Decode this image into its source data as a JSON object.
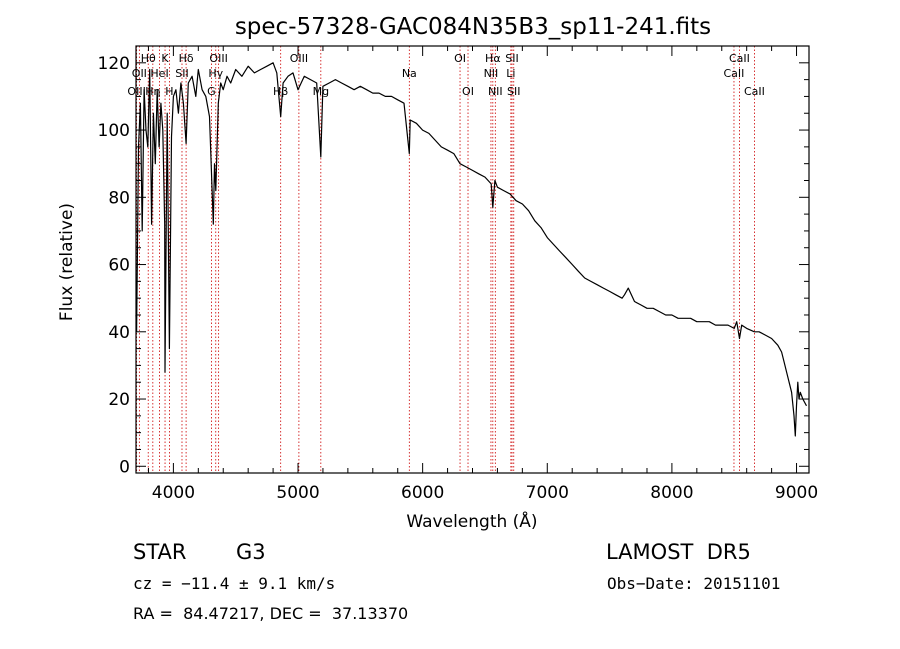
{
  "chart_data": {
    "type": "line",
    "title": "spec-57328-GAC084N35B3_sp11-241.fits",
    "xlabel": "Wavelength (Å)",
    "ylabel": "Flux (relative)",
    "xlim": [
      3700,
      9100
    ],
    "ylim": [
      -2,
      125
    ],
    "xticks": [
      4000,
      5000,
      6000,
      7000,
      8000,
      9000
    ],
    "yticks": [
      0,
      20,
      40,
      60,
      80,
      100,
      120
    ],
    "grid": false,
    "series": [
      {
        "color": "#000000",
        "x": [
          3700,
          3705,
          3720,
          3735,
          3750,
          3765,
          3780,
          3795,
          3810,
          3825,
          3840,
          3855,
          3870,
          3885,
          3900,
          3915,
          3930,
          3933,
          3950,
          3968,
          3985,
          4000,
          4020,
          4040,
          4060,
          4080,
          4102,
          4120,
          4150,
          4180,
          4200,
          4230,
          4260,
          4290,
          4320,
          4330,
          4340,
          4360,
          4380,
          4400,
          4430,
          4460,
          4500,
          4550,
          4600,
          4650,
          4700,
          4750,
          4800,
          4830,
          4861,
          4880,
          4920,
          4960,
          5000,
          5050,
          5100,
          5150,
          5183,
          5200,
          5250,
          5300,
          5350,
          5400,
          5450,
          5500,
          5550,
          5600,
          5650,
          5700,
          5750,
          5800,
          5850,
          5893,
          5900,
          5950,
          6000,
          6050,
          6100,
          6150,
          6200,
          6250,
          6300,
          6350,
          6400,
          6450,
          6500,
          6550,
          6563,
          6580,
          6600,
          6650,
          6700,
          6750,
          6800,
          6850,
          6900,
          6950,
          7000,
          7050,
          7100,
          7150,
          7200,
          7250,
          7300,
          7350,
          7400,
          7450,
          7500,
          7550,
          7600,
          7620,
          7650,
          7700,
          7750,
          7800,
          7850,
          7900,
          7950,
          8000,
          8050,
          8100,
          8150,
          8200,
          8250,
          8300,
          8350,
          8400,
          8450,
          8500,
          8520,
          8542,
          8560,
          8600,
          8662,
          8700,
          8750,
          8800,
          8850,
          8880,
          8900,
          8920,
          8940,
          8960,
          8980,
          8990,
          9000,
          9010,
          9020,
          9030,
          9050,
          9080
        ],
        "y": [
          45,
          40,
          95,
          108,
          70,
          112,
          100,
          95,
          118,
          72,
          105,
          90,
          112,
          95,
          108,
          100,
          72,
          28,
          105,
          35,
          98,
          110,
          112,
          105,
          114,
          108,
          96,
          114,
          116,
          110,
          118,
          112,
          110,
          104,
          72,
          90,
          82,
          108,
          114,
          112,
          116,
          114,
          118,
          116,
          119,
          117,
          118,
          119,
          120,
          117,
          104,
          114,
          116,
          117,
          112,
          116,
          115,
          114,
          92,
          113,
          114,
          115,
          114,
          113,
          112,
          113,
          112,
          111,
          111,
          110,
          110,
          109,
          108,
          93,
          103,
          102,
          100,
          99,
          97,
          95,
          94,
          93,
          90,
          89,
          88,
          87,
          86,
          84,
          77,
          85,
          83,
          82,
          81,
          79,
          78,
          76,
          73,
          71,
          68,
          66,
          64,
          62,
          60,
          58,
          56,
          55,
          54,
          53,
          52,
          51,
          50,
          51,
          53,
          49,
          48,
          47,
          47,
          46,
          45,
          45,
          44,
          44,
          44,
          43,
          43,
          43,
          42,
          42,
          42,
          41,
          43,
          38,
          42,
          41,
          40,
          40,
          39,
          38,
          36,
          34,
          31,
          28,
          25,
          22,
          15,
          9,
          18,
          25,
          20,
          22,
          20,
          18
        ]
      }
    ],
    "spectral_lines": [
      {
        "label": "Hθ",
        "wl": 3798,
        "row": 1
      },
      {
        "label": "OII",
        "wl": 3727,
        "row": 2
      },
      {
        "label": "OIII",
        "wl": 3705,
        "row": 3
      },
      {
        "label": "Hη",
        "wl": 3835,
        "row": 3
      },
      {
        "label": "K",
        "wl": 3933,
        "row": 1
      },
      {
        "label": "HeI",
        "wl": 3889,
        "row": 2
      },
      {
        "label": "H",
        "wl": 3968,
        "row": 3
      },
      {
        "label": "Hδ",
        "wl": 4102,
        "row": 1
      },
      {
        "label": "SII",
        "wl": 4069,
        "row": 2
      },
      {
        "label": "OIII",
        "wl": 4363,
        "row": 1
      },
      {
        "label": "Hγ",
        "wl": 4340,
        "row": 2
      },
      {
        "label": "G",
        "wl": 4305,
        "row": 3
      },
      {
        "label": "OIII",
        "wl": 5007,
        "row": 1
      },
      {
        "label": "Hβ",
        "wl": 4861,
        "row": 3
      },
      {
        "label": "Mg",
        "wl": 5183,
        "row": 3
      },
      {
        "label": "Na",
        "wl": 5893,
        "row": 2
      },
      {
        "label": "OI",
        "wl": 6300,
        "row": 1
      },
      {
        "label": "OI",
        "wl": 6364,
        "row": 3
      },
      {
        "label": "Hα",
        "wl": 6563,
        "row": 1
      },
      {
        "label": "NII",
        "wl": 6548,
        "row": 2
      },
      {
        "label": "NII",
        "wl": 6583,
        "row": 3
      },
      {
        "label": "SII",
        "wl": 6717,
        "row": 1
      },
      {
        "label": "Li",
        "wl": 6708,
        "row": 2
      },
      {
        "label": "SII",
        "wl": 6731,
        "row": 3
      },
      {
        "label": "CaII",
        "wl": 8542,
        "row": 1
      },
      {
        "label": "CaII",
        "wl": 8498,
        "row": 2
      },
      {
        "label": "CaII",
        "wl": 8662,
        "row": 3
      }
    ]
  },
  "info": {
    "object_class": "STAR",
    "subclass": "G3",
    "survey": "LAMOST  DR5",
    "cz": "cz = −11.4 ± 9.1 km/s",
    "obs_date": "Obs−Date: 20151101",
    "coords": "RA =  84.47217, DEC =  37.13370"
  },
  "colors": {
    "spectrum": "#000000",
    "line_marker": "#cc0000",
    "background": "#ffffff"
  }
}
